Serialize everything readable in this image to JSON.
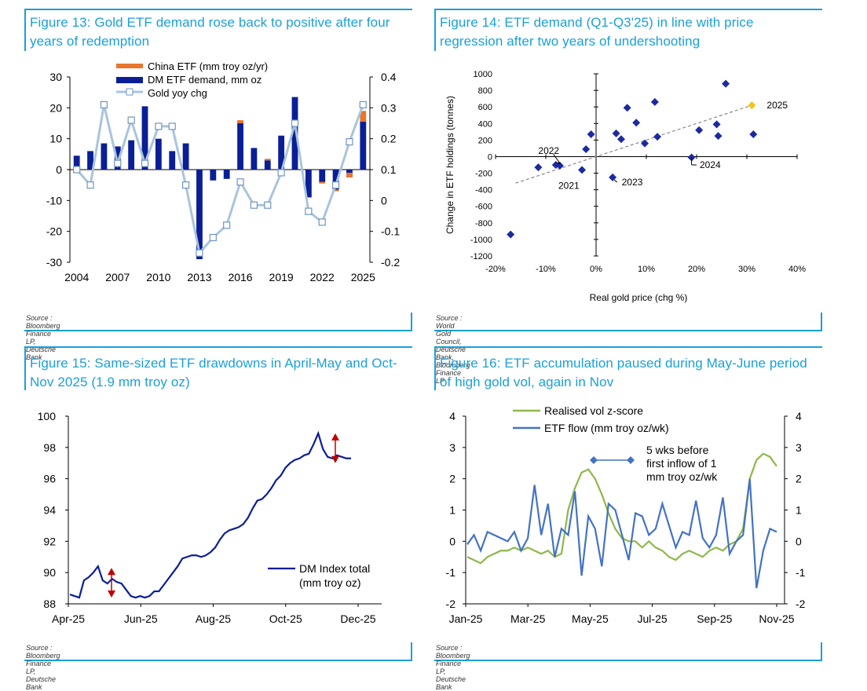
{
  "colors": {
    "accent": "#1aa0d8",
    "navy": "#0a1e96",
    "orange": "#e8762c",
    "lightblue": "#a9c4dc",
    "marker": "#6f95c3",
    "green": "#8db84a",
    "flowblue": "#4472c4",
    "diamond": "#1c2aa0",
    "highlight": "#f5c518",
    "red": "#c00000"
  },
  "fig13": {
    "title": "Figure 13: Gold ETF demand rose back to positive after four years of redemption",
    "source": "Source : Bloomberg Finance LP, Deutsche Bank",
    "chart_data": {
      "type": "bar",
      "years": [
        2004,
        2005,
        2006,
        2007,
        2008,
        2009,
        2010,
        2011,
        2012,
        2013,
        2014,
        2015,
        2016,
        2017,
        2018,
        2019,
        2020,
        2021,
        2022,
        2023,
        2024,
        2025
      ],
      "x_tick_labels": [
        "2004",
        "2007",
        "2010",
        "2013",
        "2016",
        "2019",
        "2022",
        "2025"
      ],
      "y_left_ticks": [
        "30",
        "20",
        "10",
        "0",
        "-10",
        "-20",
        "-30"
      ],
      "y_right_ticks": [
        "0.4",
        "0.3",
        "0.2",
        "0.1",
        "0",
        "-0.1",
        "-0.2"
      ],
      "ylim_left": [
        -30,
        30
      ],
      "ylim_right": [
        -0.2,
        0.4
      ],
      "series": [
        {
          "name": "China ETF (mm troy oz/yr)",
          "axis": "left",
          "values": [
            0,
            0,
            0,
            0,
            0,
            0,
            0,
            0,
            0,
            0,
            0,
            0,
            1,
            0,
            0.5,
            0,
            0,
            0,
            -0.5,
            -0.5,
            1.5,
            3.5
          ]
        },
        {
          "name": "DM ETF demand, mm oz",
          "axis": "left",
          "values": [
            4.5,
            6,
            8.5,
            7.5,
            9.5,
            20.5,
            10,
            6,
            8.5,
            -29,
            -3.5,
            -3,
            15,
            7,
            3,
            11,
            23.5,
            -9,
            -4,
            -6.5,
            -2.5,
            15.5
          ]
        },
        {
          "name": "Gold yoy chg",
          "axis": "right",
          "values": [
            0.1,
            0.05,
            0.31,
            0.12,
            0.26,
            0.12,
            0.24,
            0.24,
            0.05,
            -0.17,
            -0.12,
            -0.08,
            0.06,
            -0.015,
            -0.015,
            0.09,
            0.25,
            -0.035,
            -0.07,
            0.05,
            0.19,
            0.31
          ]
        }
      ]
    }
  },
  "fig14": {
    "title": "Figure 14: ETF demand (Q1-Q3'25) in line with price regression after two years of undershooting",
    "source": "Source : World Gold Council, Deutsche Bank, Bloomberg Finance LP",
    "chart_data": {
      "type": "scatter",
      "xlabel": "Real gold price (chg %)",
      "ylabel": "Change in ETF holdings (tonnes)",
      "xlim": [
        -0.2,
        0.4
      ],
      "ylim": [
        -1200,
        1000
      ],
      "x_tick_labels": [
        "-20%",
        "-10%",
        "0%",
        "10%",
        "20%",
        "30%",
        "40%"
      ],
      "y_tick_labels": [
        "1000",
        "800",
        "600",
        "400",
        "200",
        "0",
        "-200",
        "-400",
        "-600",
        "-800",
        "-1000",
        "-1200"
      ],
      "points": [
        {
          "x": -0.17,
          "y": -940
        },
        {
          "x": -0.115,
          "y": -130
        },
        {
          "x": -0.08,
          "y": -100
        },
        {
          "x": -0.072,
          "y": -110
        },
        {
          "x": -0.028,
          "y": -160
        },
        {
          "x": -0.02,
          "y": 90
        },
        {
          "x": -0.01,
          "y": 270
        },
        {
          "x": 0.033,
          "y": -250
        },
        {
          "x": 0.04,
          "y": 280
        },
        {
          "x": 0.05,
          "y": 210
        },
        {
          "x": 0.062,
          "y": 590
        },
        {
          "x": 0.08,
          "y": 410
        },
        {
          "x": 0.097,
          "y": 160
        },
        {
          "x": 0.117,
          "y": 660
        },
        {
          "x": 0.122,
          "y": 240
        },
        {
          "x": 0.19,
          "y": -10
        },
        {
          "x": 0.205,
          "y": 320
        },
        {
          "x": 0.24,
          "y": 390
        },
        {
          "x": 0.243,
          "y": 250
        },
        {
          "x": 0.258,
          "y": 880
        },
        {
          "x": 0.313,
          "y": 270
        }
      ],
      "highlight_point": {
        "x": 0.31,
        "y": 620
      },
      "annotations": [
        "2025",
        "2024",
        "2023",
        "2022",
        "2021"
      ],
      "regression": {
        "x0": -0.16,
        "y0": -320,
        "x1": 0.31,
        "y1": 620
      }
    }
  },
  "fig15": {
    "title": "Figure 15: Same-sized ETF drawdowns in April-May and Oct-Nov 2025 (1.9 mm troy oz)",
    "source": "Source : Bloomberg Finance LP, Deutsche Bank",
    "legend": [
      "DM Index total",
      "(mm troy oz)"
    ],
    "chart_data": {
      "type": "line",
      "ylim": [
        88,
        100
      ],
      "y_tick_labels": [
        "100",
        "98",
        "96",
        "94",
        "92",
        "90",
        "88"
      ],
      "x_tick_labels": [
        "Apr-25",
        "Jun-25",
        "Aug-25",
        "Oct-25",
        "Dec-25"
      ],
      "series": [
        {
          "name": "DM Index total (mm troy oz)",
          "values": [
            88.6,
            88.5,
            88.4,
            89.5,
            89.7,
            90.0,
            90.4,
            89.5,
            89.3,
            89.6,
            89.4,
            89.3,
            88.9,
            88.5,
            88.4,
            88.5,
            88.4,
            88.5,
            88.8,
            88.8,
            89.2,
            89.6,
            90.0,
            90.4,
            90.9,
            91.0,
            91.1,
            91.1,
            91.0,
            91.1,
            91.3,
            91.6,
            92.1,
            92.5,
            92.7,
            92.8,
            92.9,
            93.1,
            93.5,
            94.1,
            94.6,
            94.7,
            95.0,
            95.4,
            95.9,
            96.2,
            96.7,
            97.0,
            97.2,
            97.3,
            97.5,
            97.6,
            98.2,
            98.9,
            97.9,
            97.4,
            97.3,
            97.5,
            97.4,
            97.3,
            97.3
          ]
        }
      ]
    }
  },
  "fig16": {
    "title": "Figure 16: ETF accumulation paused during May-June period of high gold vol, again in Nov",
    "source": "Source : Bloomberg Finance LP, Deutsche Bank",
    "annotation": [
      "5 wks before",
      "first inflow of 1",
      "mm troy oz/wk"
    ],
    "chart_data": {
      "type": "line",
      "ylim": [
        -2,
        4
      ],
      "y_tick_labels": [
        "4",
        "3",
        "2",
        "1",
        "0",
        "-1",
        "-2"
      ],
      "x_tick_labels": [
        "Jan-25",
        "Mar-25",
        "May-25",
        "Jul-25",
        "Sep-25",
        "Nov-25"
      ],
      "series": [
        {
          "name": "Realised vol z-score",
          "values": [
            -0.5,
            -0.6,
            -0.7,
            -0.5,
            -0.4,
            -0.3,
            -0.3,
            -0.2,
            -0.3,
            -0.2,
            -0.3,
            -0.4,
            -0.3,
            -0.5,
            -0.4,
            1.0,
            1.7,
            2.2,
            2.3,
            2.0,
            1.5,
            0.9,
            0.4,
            0.1,
            0.0,
            0.0,
            -0.2,
            0.0,
            -0.2,
            -0.3,
            -0.5,
            -0.6,
            -0.4,
            -0.3,
            -0.4,
            -0.5,
            -0.3,
            -0.2,
            -0.3,
            -0.1,
            0.0,
            0.4,
            2.0,
            2.6,
            2.8,
            2.7,
            2.4
          ]
        },
        {
          "name": "ETF flow (mm troy oz/wk)",
          "values": [
            -0.1,
            0.2,
            -0.3,
            0.3,
            0.2,
            0.1,
            0.0,
            0.3,
            -0.3,
            0.1,
            1.8,
            0.2,
            1.2,
            -0.5,
            0.4,
            0.2,
            1.6,
            -1.1,
            0.8,
            0.4,
            -0.8,
            1.2,
            1.0,
            0.2,
            -0.6,
            0.9,
            0.8,
            0.2,
            0.4,
            1.2,
            0.5,
            -0.2,
            0.3,
            0.2,
            1.3,
            0.1,
            -0.2,
            0.2,
            1.4,
            -0.4,
            0.0,
            0.2,
            2.0,
            -1.5,
            -0.3,
            0.4,
            0.3
          ]
        }
      ]
    }
  }
}
